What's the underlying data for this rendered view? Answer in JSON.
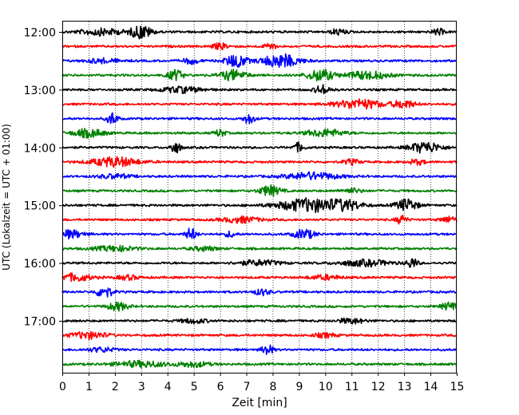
{
  "chart_data": {
    "type": "line",
    "title": "",
    "xlabel": "Zeit  [min]",
    "ylabel": "UTC (Lokalzeit = UTC + 01:00)",
    "xlim": [
      0,
      15
    ],
    "x_ticks": [
      "0",
      "1",
      "2",
      "3",
      "4",
      "5",
      "6",
      "7",
      "8",
      "9",
      "10",
      "11",
      "12",
      "13",
      "14",
      "15"
    ],
    "y_ticks": [
      "12:00",
      "13:00",
      "14:00",
      "15:00",
      "16:00",
      "17:00"
    ],
    "trace_interval_minutes": 15,
    "first_trace": "12:00",
    "last_trace": "17:45",
    "grid": "vertical dotted at each minute",
    "trace_colors": [
      "#000000",
      "#ff0000",
      "#0000ff",
      "#008000"
    ],
    "traces": [
      {
        "start": "12:00",
        "color": "#000000",
        "events": [
          [
            1.5,
            0.45,
            0.8
          ],
          [
            3.0,
            0.9,
            0.4
          ],
          [
            10.5,
            0.4,
            0.3
          ],
          [
            14.3,
            0.45,
            0.2
          ]
        ]
      },
      {
        "start": "12:15",
        "color": "#ff0000",
        "events": [
          [
            6.0,
            0.4,
            0.3
          ],
          [
            7.9,
            0.5,
            0.2
          ]
        ]
      },
      {
        "start": "12:30",
        "color": "#0000ff",
        "events": [
          [
            4.9,
            0.4,
            0.3
          ],
          [
            6.6,
            0.9,
            0.4
          ],
          [
            8.3,
            0.9,
            0.7
          ],
          [
            1.5,
            0.3,
            0.6
          ]
        ]
      },
      {
        "start": "12:45",
        "color": "#008000",
        "events": [
          [
            4.3,
            0.7,
            0.3
          ],
          [
            6.5,
            0.7,
            0.5
          ],
          [
            9.8,
            0.8,
            0.5
          ],
          [
            11.6,
            0.55,
            0.8
          ]
        ]
      },
      {
        "start": "13:00",
        "color": "#000000",
        "events": [
          [
            4.5,
            0.4,
            0.8
          ],
          [
            9.9,
            0.6,
            0.3
          ]
        ]
      },
      {
        "start": "13:15",
        "color": "#ff0000",
        "events": [
          [
            11.3,
            0.65,
            0.9
          ],
          [
            13.0,
            0.55,
            0.4
          ]
        ]
      },
      {
        "start": "13:30",
        "color": "#0000ff",
        "events": [
          [
            1.9,
            0.85,
            0.2
          ],
          [
            7.1,
            0.7,
            0.2
          ]
        ]
      },
      {
        "start": "13:45",
        "color": "#008000",
        "events": [
          [
            1.0,
            0.55,
            0.6
          ],
          [
            6.0,
            0.5,
            0.2
          ],
          [
            10.0,
            0.5,
            0.7
          ]
        ]
      },
      {
        "start": "14:00",
        "color": "#000000",
        "events": [
          [
            4.3,
            0.8,
            0.2
          ],
          [
            9.0,
            0.6,
            0.2
          ],
          [
            13.8,
            0.75,
            0.6
          ]
        ]
      },
      {
        "start": "14:15",
        "color": "#ff0000",
        "events": [
          [
            2.0,
            0.65,
            0.9
          ],
          [
            11.0,
            0.35,
            0.3
          ],
          [
            13.5,
            0.35,
            0.3
          ]
        ]
      },
      {
        "start": "14:30",
        "color": "#0000ff",
        "events": [
          [
            9.5,
            0.5,
            1.0
          ],
          [
            2.0,
            0.3,
            0.6
          ]
        ]
      },
      {
        "start": "14:45",
        "color": "#008000",
        "events": [
          [
            7.9,
            0.7,
            0.4
          ],
          [
            11.0,
            0.3,
            0.4
          ]
        ]
      },
      {
        "start": "15:00",
        "color": "#000000",
        "events": [
          [
            9.4,
            0.9,
            1.2
          ],
          [
            10.8,
            0.55,
            0.6
          ],
          [
            13.1,
            0.85,
            0.4
          ]
        ]
      },
      {
        "start": "15:15",
        "color": "#ff0000",
        "events": [
          [
            6.8,
            0.4,
            0.7
          ],
          [
            12.9,
            0.6,
            0.2
          ],
          [
            14.7,
            0.4,
            0.3
          ]
        ]
      },
      {
        "start": "15:30",
        "color": "#0000ff",
        "events": [
          [
            0.3,
            0.55,
            0.5
          ],
          [
            4.9,
            0.85,
            0.2
          ],
          [
            6.4,
            0.4,
            0.2
          ],
          [
            9.2,
            0.65,
            0.4
          ]
        ]
      },
      {
        "start": "15:45",
        "color": "#008000",
        "events": [
          [
            2.0,
            0.35,
            0.8
          ],
          [
            5.4,
            0.3,
            0.5
          ]
        ]
      },
      {
        "start": "16:00",
        "color": "#000000",
        "events": [
          [
            7.5,
            0.35,
            0.8
          ],
          [
            11.5,
            0.4,
            1.0
          ],
          [
            13.3,
            0.7,
            0.2
          ]
        ]
      },
      {
        "start": "16:15",
        "color": "#ff0000",
        "events": [
          [
            0.5,
            0.5,
            0.6
          ],
          [
            2.5,
            0.3,
            0.4
          ],
          [
            10.0,
            0.3,
            0.6
          ]
        ]
      },
      {
        "start": "16:30",
        "color": "#0000ff",
        "events": [
          [
            1.6,
            0.8,
            0.3
          ],
          [
            7.6,
            0.4,
            0.3
          ]
        ]
      },
      {
        "start": "16:45",
        "color": "#008000",
        "events": [
          [
            2.1,
            0.55,
            0.4
          ],
          [
            14.7,
            0.5,
            0.3
          ]
        ]
      },
      {
        "start": "17:00",
        "color": "#000000",
        "events": [
          [
            5.0,
            0.3,
            0.5
          ],
          [
            11.0,
            0.35,
            0.5
          ]
        ]
      },
      {
        "start": "17:15",
        "color": "#ff0000",
        "events": [
          [
            1.0,
            0.45,
            0.7
          ],
          [
            10.0,
            0.3,
            0.4
          ]
        ]
      },
      {
        "start": "17:30",
        "color": "#0000ff",
        "events": [
          [
            7.8,
            0.8,
            0.2
          ],
          [
            1.5,
            0.3,
            0.5
          ]
        ]
      },
      {
        "start": "17:45",
        "color": "#008000",
        "events": [
          [
            3.0,
            0.4,
            1.0
          ],
          [
            5.0,
            0.35,
            0.6
          ]
        ]
      }
    ]
  }
}
